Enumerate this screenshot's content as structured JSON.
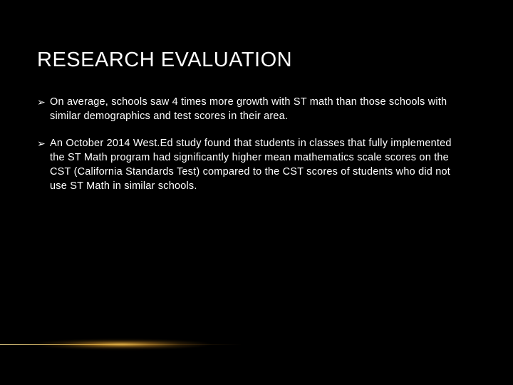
{
  "slide": {
    "title": "RESEARCH EVALUATION",
    "bullets": [
      {
        "marker": "➢",
        "text": "On average, schools saw 4 times more growth with ST math than those schools with similar demographics and test scores in their area."
      },
      {
        "marker": "➢",
        "text": "An October 2014 West.Ed study found that students in classes that fully implemented the ST Math program had significantly higher mean mathematics scale scores on the CST (California Standards Test) compared to the CST scores of students who did not use ST Math in similar schools."
      }
    ]
  },
  "style": {
    "background_color": "#000000",
    "text_color": "#ffffff",
    "title_fontsize": 29,
    "body_fontsize": 14.5,
    "glow_color_inner": "#ffc850",
    "glow_color_outer": "#785014"
  }
}
